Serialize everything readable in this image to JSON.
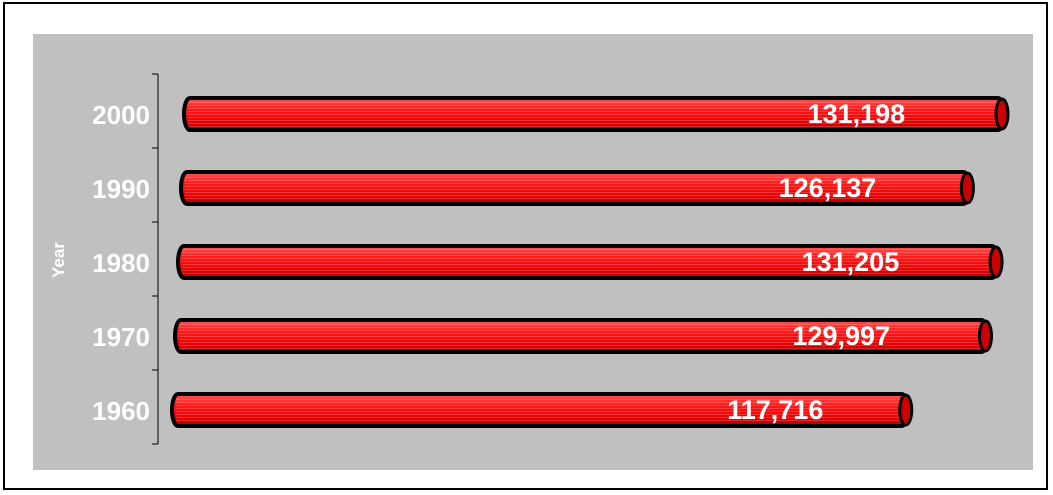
{
  "chart_data": {
    "type": "bar",
    "orientation": "horizontal",
    "ylabel": "Year",
    "xlabel": "",
    "title": "",
    "categories": [
      "2000",
      "1990",
      "1980",
      "1970",
      "1960"
    ],
    "values": [
      131198,
      126137,
      131205,
      129997,
      117716
    ],
    "value_labels": [
      "131,198",
      "126,137",
      "131,205",
      "129,997",
      "117,716"
    ],
    "bar_color": "#ff0000",
    "plot_background": "#c0c0c0",
    "grid": false,
    "legend": "none"
  }
}
